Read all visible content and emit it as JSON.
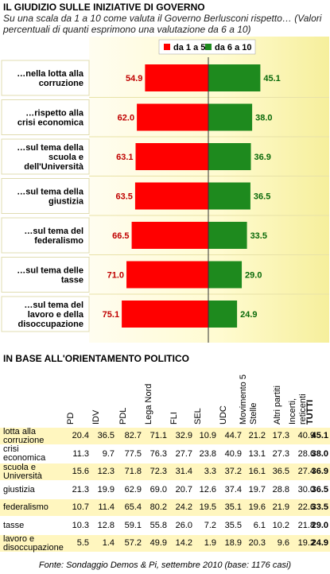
{
  "header": {
    "title": "IL GIUDIZIO SULLE INIZIATIVE DI GOVERNO",
    "subtitle": "Su una scala da 1 a 10 come valuta il Governo Berlusconi rispetto… (Valori percentuali di quanti esprimono una valutazione da 6 a 10)"
  },
  "colors": {
    "red": "#ff0000",
    "green": "#1e8a1e",
    "panel": "#fffdd8",
    "panel_dark": "#f6f0a0"
  },
  "chart_data": {
    "type": "bar",
    "orientation": "horizontal-diverging",
    "categories": [
      [
        "…nella lotta alla",
        "corruzione"
      ],
      [
        "…rispetto alla",
        "crisi economica"
      ],
      [
        "…sul tema della",
        "scuola e",
        "dell'Università"
      ],
      [
        "…sul tema della",
        "giustizia"
      ],
      [
        "…sul tema del",
        "federalismo"
      ],
      [
        "…sul tema delle",
        "tasse"
      ],
      [
        "…sul tema del",
        "lavoro e della",
        "disoccupazione"
      ]
    ],
    "series": [
      {
        "name": "da 1 a 5",
        "color": "#ff0000",
        "values": [
          54.9,
          62.0,
          63.1,
          63.5,
          66.5,
          71.0,
          75.1
        ]
      },
      {
        "name": "da 6 a 10",
        "color": "#1e8a1e",
        "values": [
          45.1,
          38.0,
          36.9,
          36.5,
          33.5,
          29.0,
          24.9
        ]
      }
    ],
    "legend": "top-right"
  },
  "table": {
    "section_title": "IN BASE ALL'ORIENTAMENTO POLITICO",
    "columns": [
      "PD",
      "IDV",
      "PDL",
      "Lega Nord",
      "FLI",
      "SEL",
      "UDC",
      "Movimento 5 Stelle",
      "Altri partiti",
      "Incerti, reticenti",
      "TUTTI"
    ],
    "rows": [
      {
        "label": "lotta alla corruzione",
        "values": [
          "20.4",
          "36.5",
          "82.7",
          "71.1",
          "32.9",
          "10.9",
          "44.7",
          "21.2",
          "17.3",
          "40.9",
          "45.1"
        ]
      },
      {
        "label": "crisi economica",
        "values": [
          "11.3",
          "9.7",
          "77.5",
          "76.3",
          "27.7",
          "23.8",
          "40.9",
          "13.1",
          "27.3",
          "28.6",
          "38.0"
        ]
      },
      {
        "label": "scuola e Università",
        "values": [
          "15.6",
          "12.3",
          "71.8",
          "72.3",
          "31.4",
          "3.3",
          "37.2",
          "16.1",
          "36.5",
          "27.4",
          "36.9"
        ]
      },
      {
        "label": "giustizia",
        "values": [
          "21.3",
          "19.9",
          "62.9",
          "69.0",
          "20.7",
          "12.6",
          "37.4",
          "19.7",
          "28.8",
          "30.0",
          "36.5"
        ]
      },
      {
        "label": "federalismo",
        "values": [
          "10.7",
          "11.4",
          "65.4",
          "80.2",
          "24.2",
          "19.5",
          "35.1",
          "19.6",
          "21.9",
          "22.6",
          "33.5"
        ]
      },
      {
        "label": "tasse",
        "values": [
          "10.3",
          "12.8",
          "59.1",
          "55.8",
          "26.0",
          "7.2",
          "35.5",
          "6.1",
          "10.2",
          "21.8",
          "29.0"
        ]
      },
      {
        "label": "lavoro e disoccupazione",
        "values": [
          "5.5",
          "1.4",
          "57.2",
          "49.9",
          "14.2",
          "1.9",
          "18.9",
          "20.3",
          "9.6",
          "19.2",
          "24.9"
        ]
      }
    ]
  },
  "footer": {
    "source": "Fonte: Sondaggio Demos & Pi, settembre 2010 (base: 1176 casi)"
  }
}
